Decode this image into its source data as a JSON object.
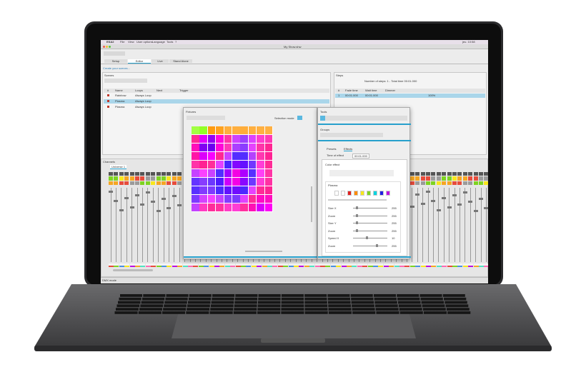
{
  "menubar": {
    "app": "ESA2",
    "menus": [
      "File",
      "View",
      "User options",
      "Language",
      "Tools",
      "?"
    ],
    "clock": "jeu. 10:58"
  },
  "window_title": "My Show.shw",
  "tabs": [
    "Setup",
    "Editor",
    "Live",
    "Stand Alone"
  ],
  "hint": "Create your scenes...",
  "scenes": {
    "title": "Scenes",
    "columns": [
      "#",
      "Name",
      "Loops",
      "Next",
      "Trigger"
    ],
    "rows": [
      [
        "Rainbow",
        "Always Loop"
      ],
      [
        "Plasma",
        "Always Loop"
      ],
      [
        "Plasma",
        "Always Loop"
      ]
    ]
  },
  "steps": {
    "title": "Steps",
    "summary": "Number of steps: 1 - Total time 00:01.000",
    "columns": [
      "#",
      "Fade time",
      "Wait time",
      "Dimmer"
    ],
    "rows": [
      [
        "1",
        "00:01.000",
        "00:01.000",
        "100%"
      ]
    ]
  },
  "channels": {
    "title": "Channels",
    "universe": "Universe 1"
  },
  "fixtures": {
    "title": "Fixtures",
    "mode": "Selection mode"
  },
  "tools": {
    "title": "Tools",
    "groups": "Groups",
    "tabs": [
      "Presets",
      "Effects"
    ],
    "time_label": "Time of effect",
    "time": "00:01.000",
    "effect": "Color effect",
    "palette": "Plasma",
    "sliders": [
      {
        "label": "Size X",
        "value": "255"
      },
      {
        "label": "Zoom",
        "value": "255"
      },
      {
        "label": "Size Y",
        "value": "255"
      },
      {
        "label": "Zoom",
        "value": "255"
      },
      {
        "label": "Speed X",
        "value": "10"
      },
      {
        "label": "Zoom",
        "value": "255"
      }
    ]
  },
  "status": "DMX mode"
}
